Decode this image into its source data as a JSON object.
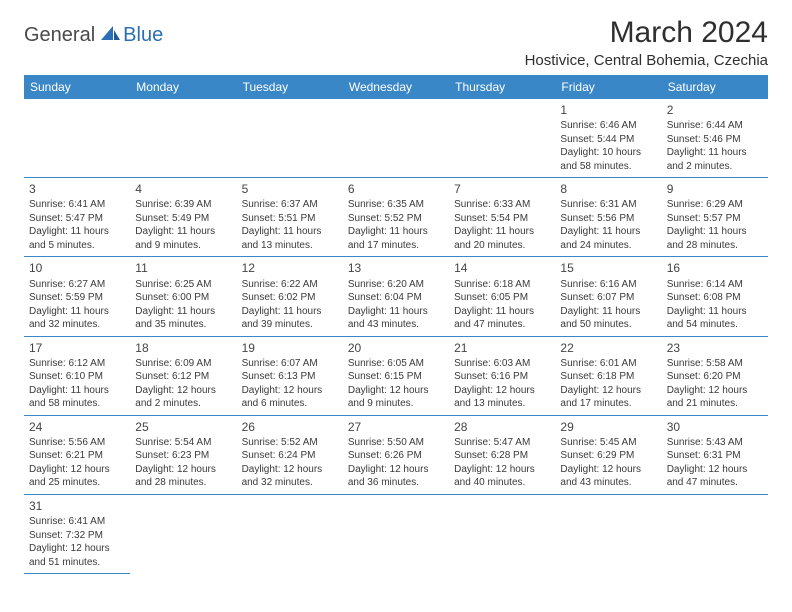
{
  "colors": {
    "header_bg": "#3a87c7",
    "header_text": "#ffffff",
    "grid_border": "#3a87c7",
    "body_text": "#3a3a3a",
    "title_text": "#2f2f2f",
    "logo_primary": "#4a4a4a",
    "logo_accent": "#2a6fb5"
  },
  "logo": {
    "text1": "General",
    "text2": "Blue"
  },
  "title": "March 2024",
  "location": "Hostivice, Central Bohemia, Czechia",
  "weekdays": [
    "Sunday",
    "Monday",
    "Tuesday",
    "Wednesday",
    "Thursday",
    "Friday",
    "Saturday"
  ],
  "weeks": [
    [
      null,
      null,
      null,
      null,
      null,
      {
        "num": "1",
        "sunrise": "Sunrise: 6:46 AM",
        "sunset": "Sunset: 5:44 PM",
        "daylight1": "Daylight: 10 hours",
        "daylight2": "and 58 minutes."
      },
      {
        "num": "2",
        "sunrise": "Sunrise: 6:44 AM",
        "sunset": "Sunset: 5:46 PM",
        "daylight1": "Daylight: 11 hours",
        "daylight2": "and 2 minutes."
      }
    ],
    [
      {
        "num": "3",
        "sunrise": "Sunrise: 6:41 AM",
        "sunset": "Sunset: 5:47 PM",
        "daylight1": "Daylight: 11 hours",
        "daylight2": "and 5 minutes."
      },
      {
        "num": "4",
        "sunrise": "Sunrise: 6:39 AM",
        "sunset": "Sunset: 5:49 PM",
        "daylight1": "Daylight: 11 hours",
        "daylight2": "and 9 minutes."
      },
      {
        "num": "5",
        "sunrise": "Sunrise: 6:37 AM",
        "sunset": "Sunset: 5:51 PM",
        "daylight1": "Daylight: 11 hours",
        "daylight2": "and 13 minutes."
      },
      {
        "num": "6",
        "sunrise": "Sunrise: 6:35 AM",
        "sunset": "Sunset: 5:52 PM",
        "daylight1": "Daylight: 11 hours",
        "daylight2": "and 17 minutes."
      },
      {
        "num": "7",
        "sunrise": "Sunrise: 6:33 AM",
        "sunset": "Sunset: 5:54 PM",
        "daylight1": "Daylight: 11 hours",
        "daylight2": "and 20 minutes."
      },
      {
        "num": "8",
        "sunrise": "Sunrise: 6:31 AM",
        "sunset": "Sunset: 5:56 PM",
        "daylight1": "Daylight: 11 hours",
        "daylight2": "and 24 minutes."
      },
      {
        "num": "9",
        "sunrise": "Sunrise: 6:29 AM",
        "sunset": "Sunset: 5:57 PM",
        "daylight1": "Daylight: 11 hours",
        "daylight2": "and 28 minutes."
      }
    ],
    [
      {
        "num": "10",
        "sunrise": "Sunrise: 6:27 AM",
        "sunset": "Sunset: 5:59 PM",
        "daylight1": "Daylight: 11 hours",
        "daylight2": "and 32 minutes."
      },
      {
        "num": "11",
        "sunrise": "Sunrise: 6:25 AM",
        "sunset": "Sunset: 6:00 PM",
        "daylight1": "Daylight: 11 hours",
        "daylight2": "and 35 minutes."
      },
      {
        "num": "12",
        "sunrise": "Sunrise: 6:22 AM",
        "sunset": "Sunset: 6:02 PM",
        "daylight1": "Daylight: 11 hours",
        "daylight2": "and 39 minutes."
      },
      {
        "num": "13",
        "sunrise": "Sunrise: 6:20 AM",
        "sunset": "Sunset: 6:04 PM",
        "daylight1": "Daylight: 11 hours",
        "daylight2": "and 43 minutes."
      },
      {
        "num": "14",
        "sunrise": "Sunrise: 6:18 AM",
        "sunset": "Sunset: 6:05 PM",
        "daylight1": "Daylight: 11 hours",
        "daylight2": "and 47 minutes."
      },
      {
        "num": "15",
        "sunrise": "Sunrise: 6:16 AM",
        "sunset": "Sunset: 6:07 PM",
        "daylight1": "Daylight: 11 hours",
        "daylight2": "and 50 minutes."
      },
      {
        "num": "16",
        "sunrise": "Sunrise: 6:14 AM",
        "sunset": "Sunset: 6:08 PM",
        "daylight1": "Daylight: 11 hours",
        "daylight2": "and 54 minutes."
      }
    ],
    [
      {
        "num": "17",
        "sunrise": "Sunrise: 6:12 AM",
        "sunset": "Sunset: 6:10 PM",
        "daylight1": "Daylight: 11 hours",
        "daylight2": "and 58 minutes."
      },
      {
        "num": "18",
        "sunrise": "Sunrise: 6:09 AM",
        "sunset": "Sunset: 6:12 PM",
        "daylight1": "Daylight: 12 hours",
        "daylight2": "and 2 minutes."
      },
      {
        "num": "19",
        "sunrise": "Sunrise: 6:07 AM",
        "sunset": "Sunset: 6:13 PM",
        "daylight1": "Daylight: 12 hours",
        "daylight2": "and 6 minutes."
      },
      {
        "num": "20",
        "sunrise": "Sunrise: 6:05 AM",
        "sunset": "Sunset: 6:15 PM",
        "daylight1": "Daylight: 12 hours",
        "daylight2": "and 9 minutes."
      },
      {
        "num": "21",
        "sunrise": "Sunrise: 6:03 AM",
        "sunset": "Sunset: 6:16 PM",
        "daylight1": "Daylight: 12 hours",
        "daylight2": "and 13 minutes."
      },
      {
        "num": "22",
        "sunrise": "Sunrise: 6:01 AM",
        "sunset": "Sunset: 6:18 PM",
        "daylight1": "Daylight: 12 hours",
        "daylight2": "and 17 minutes."
      },
      {
        "num": "23",
        "sunrise": "Sunrise: 5:58 AM",
        "sunset": "Sunset: 6:20 PM",
        "daylight1": "Daylight: 12 hours",
        "daylight2": "and 21 minutes."
      }
    ],
    [
      {
        "num": "24",
        "sunrise": "Sunrise: 5:56 AM",
        "sunset": "Sunset: 6:21 PM",
        "daylight1": "Daylight: 12 hours",
        "daylight2": "and 25 minutes."
      },
      {
        "num": "25",
        "sunrise": "Sunrise: 5:54 AM",
        "sunset": "Sunset: 6:23 PM",
        "daylight1": "Daylight: 12 hours",
        "daylight2": "and 28 minutes."
      },
      {
        "num": "26",
        "sunrise": "Sunrise: 5:52 AM",
        "sunset": "Sunset: 6:24 PM",
        "daylight1": "Daylight: 12 hours",
        "daylight2": "and 32 minutes."
      },
      {
        "num": "27",
        "sunrise": "Sunrise: 5:50 AM",
        "sunset": "Sunset: 6:26 PM",
        "daylight1": "Daylight: 12 hours",
        "daylight2": "and 36 minutes."
      },
      {
        "num": "28",
        "sunrise": "Sunrise: 5:47 AM",
        "sunset": "Sunset: 6:28 PM",
        "daylight1": "Daylight: 12 hours",
        "daylight2": "and 40 minutes."
      },
      {
        "num": "29",
        "sunrise": "Sunrise: 5:45 AM",
        "sunset": "Sunset: 6:29 PM",
        "daylight1": "Daylight: 12 hours",
        "daylight2": "and 43 minutes."
      },
      {
        "num": "30",
        "sunrise": "Sunrise: 5:43 AM",
        "sunset": "Sunset: 6:31 PM",
        "daylight1": "Daylight: 12 hours",
        "daylight2": "and 47 minutes."
      }
    ],
    [
      {
        "num": "31",
        "sunrise": "Sunrise: 6:41 AM",
        "sunset": "Sunset: 7:32 PM",
        "daylight1": "Daylight: 12 hours",
        "daylight2": "and 51 minutes."
      },
      null,
      null,
      null,
      null,
      null,
      null
    ]
  ]
}
